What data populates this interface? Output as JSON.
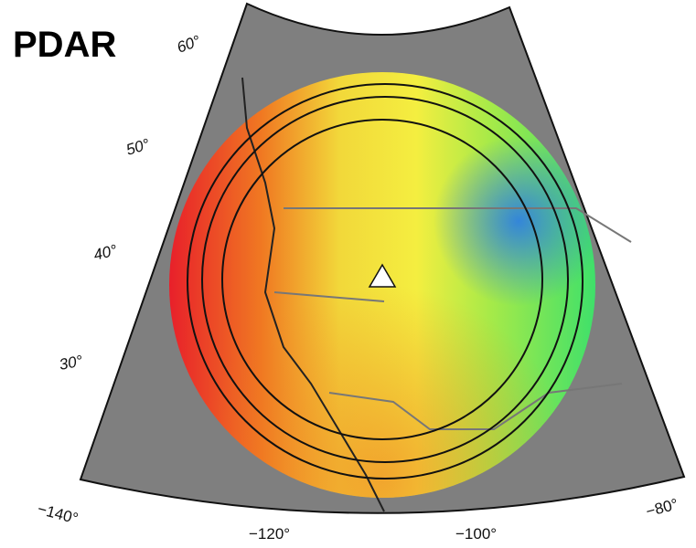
{
  "title": "PDAR",
  "lat_labels": [
    "60°",
    "50°",
    "40°",
    "30°"
  ],
  "lon_labels": [
    "−140°",
    "−120°",
    "−100°",
    "−80°"
  ]
}
